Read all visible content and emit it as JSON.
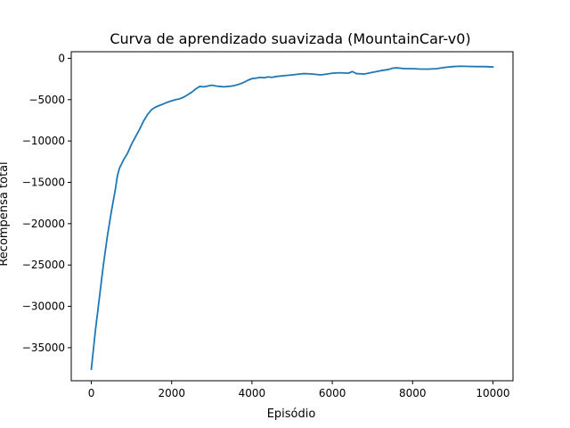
{
  "chart_data": {
    "type": "line",
    "title": "Curva de aprendizado suavizada (MountainCar-v0)",
    "xlabel": "Episódio",
    "ylabel": "Recompensa total",
    "xlim": [
      -500,
      10500
    ],
    "ylim": [
      -39000,
      800
    ],
    "xticks": [
      0,
      2000,
      4000,
      6000,
      8000,
      10000
    ],
    "yticks": [
      0,
      -5000,
      -10000,
      -15000,
      -20000,
      -25000,
      -30000,
      -35000
    ],
    "xtick_labels": [
      "0",
      "2000",
      "4000",
      "6000",
      "8000",
      "10000"
    ],
    "ytick_labels": [
      "0",
      "−5000",
      "−10000",
      "−15000",
      "−20000",
      "−25000",
      "−30000",
      "−35000"
    ],
    "grid": false,
    "colors": {
      "line": "#1f77b4"
    },
    "series": [
      {
        "x": [
          0,
          100,
          200,
          300,
          400,
          500,
          600,
          650,
          700,
          750,
          800,
          900,
          1000,
          1100,
          1200,
          1300,
          1400,
          1500,
          1600,
          1700,
          1800,
          1900,
          2000,
          2100,
          2200,
          2300,
          2400,
          2500,
          2600,
          2700,
          2800,
          2900,
          3000,
          3100,
          3200,
          3300,
          3400,
          3500,
          3600,
          3700,
          3800,
          3900,
          4000,
          4100,
          4200,
          4300,
          4400,
          4500,
          4600,
          4800,
          5000,
          5200,
          5300,
          5500,
          5700,
          5800,
          6000,
          6200,
          6400,
          6500,
          6600,
          6800,
          7000,
          7200,
          7400,
          7500,
          7600,
          7800,
          8000,
          8200,
          8400,
          8600,
          8800,
          9000,
          9200,
          9400,
          9600,
          9800,
          10000
        ],
        "y": [
          -37600,
          -33000,
          -29000,
          -25000,
          -21500,
          -18500,
          -15800,
          -14200,
          -13300,
          -12800,
          -12300,
          -11500,
          -10400,
          -9500,
          -8600,
          -7600,
          -6800,
          -6200,
          -5900,
          -5700,
          -5500,
          -5300,
          -5150,
          -5000,
          -4900,
          -4700,
          -4400,
          -4100,
          -3700,
          -3400,
          -3450,
          -3350,
          -3250,
          -3350,
          -3400,
          -3450,
          -3400,
          -3350,
          -3250,
          -3100,
          -2900,
          -2650,
          -2450,
          -2400,
          -2300,
          -2350,
          -2250,
          -2300,
          -2200,
          -2100,
          -2000,
          -1900,
          -1850,
          -1900,
          -2000,
          -1950,
          -1800,
          -1750,
          -1800,
          -1600,
          -1850,
          -1900,
          -1700,
          -1500,
          -1350,
          -1200,
          -1150,
          -1250,
          -1250,
          -1300,
          -1300,
          -1250,
          -1100,
          -1000,
          -950,
          -980,
          -1000,
          -1000,
          -1050
        ]
      }
    ]
  }
}
